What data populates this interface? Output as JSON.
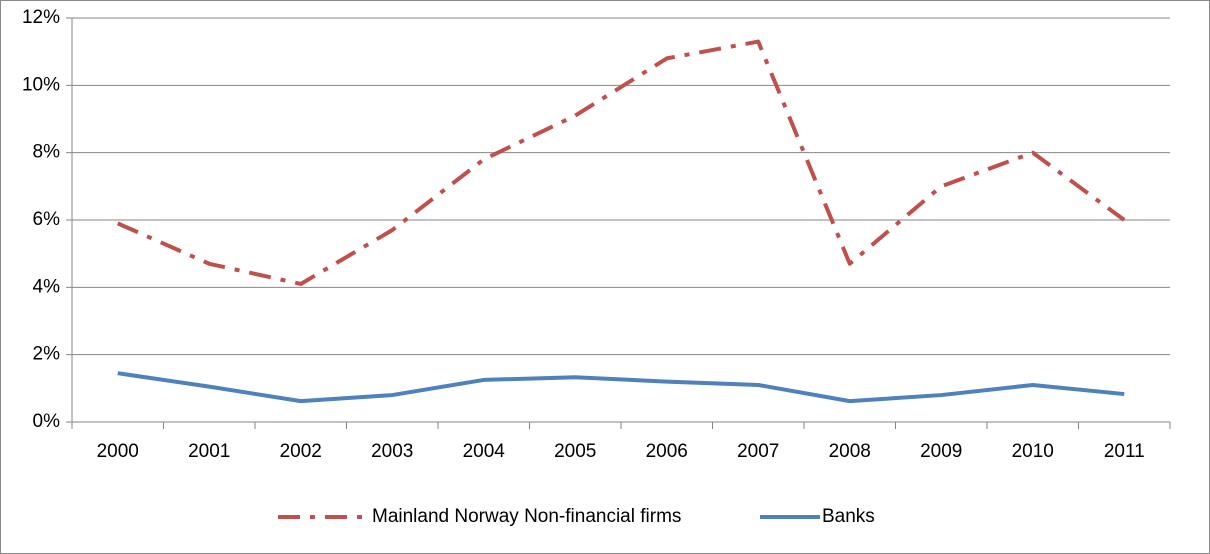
{
  "chart_data": {
    "type": "line",
    "categories": [
      "2000",
      "2001",
      "2002",
      "2003",
      "2004",
      "2005",
      "2006",
      "2007",
      "2008",
      "2009",
      "2010",
      "2011"
    ],
    "series": [
      {
        "name": "Mainland Norway Non-financial firms",
        "color": "#c0504d",
        "dash": "dash-dot",
        "values": [
          5.9,
          4.7,
          4.1,
          5.7,
          7.8,
          9.1,
          10.8,
          11.3,
          4.7,
          7.0,
          8.0,
          6.0
        ]
      },
      {
        "name": "Banks",
        "color": "#4f81bd",
        "dash": "solid",
        "values": [
          1.45,
          1.05,
          0.62,
          0.8,
          1.25,
          1.33,
          1.2,
          1.1,
          0.62,
          0.8,
          1.1,
          0.83
        ]
      }
    ],
    "ylim": [
      0,
      12
    ],
    "yticks": [
      {
        "value": 0,
        "label": "0%"
      },
      {
        "value": 2,
        "label": "2%"
      },
      {
        "value": 4,
        "label": "4%"
      },
      {
        "value": 6,
        "label": "6%"
      },
      {
        "value": 8,
        "label": "8%"
      },
      {
        "value": 10,
        "label": "10%"
      },
      {
        "value": 12,
        "label": "12%"
      }
    ],
    "grid": true,
    "legend": "bottom"
  }
}
